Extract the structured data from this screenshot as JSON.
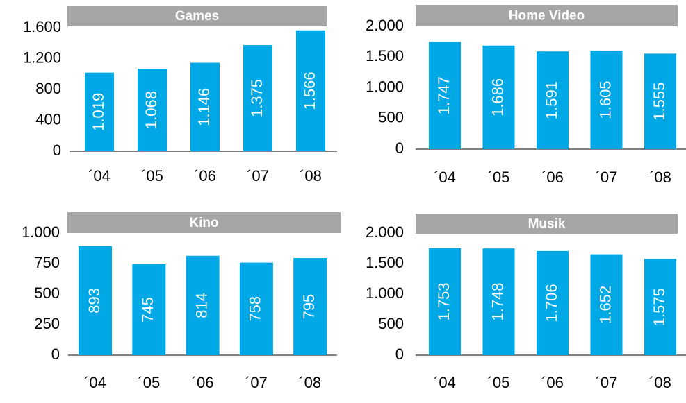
{
  "chart_data": [
    {
      "type": "bar",
      "title": "Games",
      "categories": [
        "´04",
        "´05",
        "´06",
        "´07",
        "´08"
      ],
      "values": [
        1019,
        1068,
        1146,
        1375,
        1566
      ],
      "value_labels": [
        "1.019",
        "1.068",
        "1.146",
        "1.375",
        "1.566"
      ],
      "color": "#00a9e6",
      "ylim": [
        0,
        1600
      ],
      "yticks": [
        0,
        400,
        800,
        {
          "value": 1200,
          "label": "1.200"
        },
        {
          "value": 1600,
          "label": "1.600"
        }
      ]
    },
    {
      "type": "bar",
      "title": "Home Video",
      "categories": [
        "´04",
        "´05",
        "´06",
        "´07",
        "´08"
      ],
      "values": [
        1747,
        1686,
        1591,
        1605,
        1555
      ],
      "value_labels": [
        "1.747",
        "1.686",
        "1.591",
        "1.605",
        "1.555"
      ],
      "color": "#00a9e6",
      "ylim": [
        0,
        2000
      ],
      "yticks": [
        0,
        500,
        {
          "value": 1000,
          "label": "1.000"
        },
        {
          "value": 1500,
          "label": "1.500"
        },
        {
          "value": 2000,
          "label": "2.000"
        }
      ]
    },
    {
      "type": "bar",
      "title": "Kino",
      "categories": [
        "´04",
        "´05",
        "´06",
        "´07",
        "´08"
      ],
      "values": [
        893,
        745,
        814,
        758,
        795
      ],
      "color": "#00a9e6",
      "ylim": [
        0,
        1000
      ],
      "yticks": [
        0,
        250,
        500,
        750,
        {
          "value": 1000,
          "label": "1.000"
        }
      ]
    },
    {
      "type": "bar",
      "title": "Musik",
      "categories": [
        "´04",
        "´05",
        "´06",
        "´07",
        "´08"
      ],
      "values": [
        1753,
        1748,
        1706,
        1652,
        1575
      ],
      "value_labels": [
        "1.753",
        "1.748",
        "1.706",
        "1.652",
        "1.575"
      ],
      "color": "#00a9e6",
      "ylim": [
        0,
        2000
      ],
      "yticks": [
        0,
        500,
        {
          "value": 1000,
          "label": "1.000"
        },
        {
          "value": 1500,
          "label": "1.500"
        },
        {
          "value": 2000,
          "label": "2.000"
        }
      ]
    }
  ]
}
